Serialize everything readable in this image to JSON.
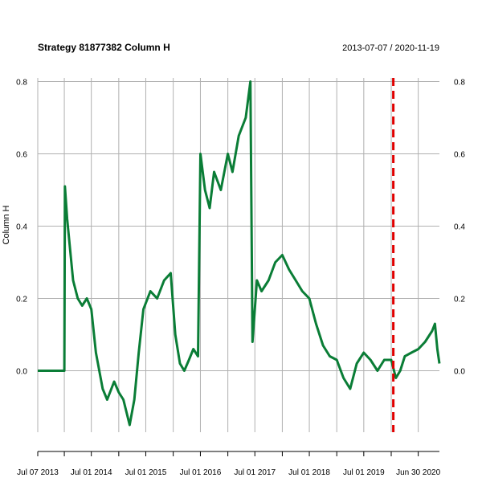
{
  "chart_data": {
    "type": "line",
    "title": "Strategy 81877382 Column H",
    "date_range": "2013-07-07 / 2020-11-19",
    "ylabel": "Column H",
    "xlabel": "",
    "ylim": [
      -0.17,
      0.81
    ],
    "y_ticks": [
      0.0,
      0.2,
      0.4,
      0.6,
      0.8
    ],
    "y_tick_labels": [
      "0.0",
      "0.2",
      "0.4",
      "0.6",
      "0.8"
    ],
    "x_range": [
      "2013-07-07",
      "2020-11-19"
    ],
    "x_tick_labels": [
      {
        "date": "2013-07-07",
        "label": "Jul 07 2013"
      },
      {
        "date": "2014-07-01",
        "label": "Jul 01 2014"
      },
      {
        "date": "2015-07-01",
        "label": "Jul 01 2015"
      },
      {
        "date": "2016-07-01",
        "label": "Jul 01 2016"
      },
      {
        "date": "2017-07-01",
        "label": "Jul 01 2017"
      },
      {
        "date": "2018-07-01",
        "label": "Jul 01 2018"
      },
      {
        "date": "2019-07-01",
        "label": "Jul 01 2019"
      },
      {
        "date": "2020-06-30",
        "label": "Jun 30 2020"
      }
    ],
    "x_minor_ticks": [
      "2014-01-01",
      "2015-01-01",
      "2016-01-01",
      "2017-01-01",
      "2018-01-01",
      "2019-01-01",
      "2020-01-01"
    ],
    "grid": true,
    "vline": {
      "date": "2020-01-15",
      "color": "#e00000",
      "style": "dashed"
    },
    "series": [
      {
        "color": "#0a7d36",
        "points": [
          [
            "2013-07-07",
            0.0
          ],
          [
            "2013-11-01",
            0.0
          ],
          [
            "2014-01-01",
            0.0
          ],
          [
            "2014-01-05",
            0.51
          ],
          [
            "2014-01-20",
            0.42
          ],
          [
            "2014-02-10",
            0.33
          ],
          [
            "2014-03-01",
            0.25
          ],
          [
            "2014-04-01",
            0.2
          ],
          [
            "2014-05-01",
            0.18
          ],
          [
            "2014-06-01",
            0.2
          ],
          [
            "2014-07-01",
            0.17
          ],
          [
            "2014-08-01",
            0.05
          ],
          [
            "2014-09-15",
            -0.05
          ],
          [
            "2014-10-15",
            -0.08
          ],
          [
            "2014-12-01",
            -0.03
          ],
          [
            "2015-01-01",
            -0.06
          ],
          [
            "2015-02-01",
            -0.08
          ],
          [
            "2015-03-15",
            -0.15
          ],
          [
            "2015-04-15",
            -0.08
          ],
          [
            "2015-05-15",
            0.05
          ],
          [
            "2015-06-15",
            0.17
          ],
          [
            "2015-08-01",
            0.22
          ],
          [
            "2015-09-15",
            0.2
          ],
          [
            "2015-11-01",
            0.25
          ],
          [
            "2015-12-15",
            0.27
          ],
          [
            "2016-01-15",
            0.1
          ],
          [
            "2016-02-15",
            0.02
          ],
          [
            "2016-03-15",
            0.0
          ],
          [
            "2016-04-15",
            0.03
          ],
          [
            "2016-05-15",
            0.06
          ],
          [
            "2016-06-15",
            0.04
          ],
          [
            "2016-07-01",
            0.6
          ],
          [
            "2016-08-01",
            0.5
          ],
          [
            "2016-09-01",
            0.45
          ],
          [
            "2016-10-01",
            0.55
          ],
          [
            "2016-11-15",
            0.5
          ],
          [
            "2017-01-01",
            0.6
          ],
          [
            "2017-02-01",
            0.55
          ],
          [
            "2017-03-15",
            0.65
          ],
          [
            "2017-05-01",
            0.7
          ],
          [
            "2017-06-01",
            0.8
          ],
          [
            "2017-06-15",
            0.08
          ],
          [
            "2017-07-15",
            0.25
          ],
          [
            "2017-08-15",
            0.22
          ],
          [
            "2017-10-01",
            0.25
          ],
          [
            "2017-11-15",
            0.3
          ],
          [
            "2018-01-01",
            0.32
          ],
          [
            "2018-02-15",
            0.28
          ],
          [
            "2018-04-01",
            0.25
          ],
          [
            "2018-05-15",
            0.22
          ],
          [
            "2018-07-01",
            0.2
          ],
          [
            "2018-08-15",
            0.13
          ],
          [
            "2018-10-01",
            0.07
          ],
          [
            "2018-11-15",
            0.04
          ],
          [
            "2019-01-01",
            0.03
          ],
          [
            "2019-02-15",
            -0.02
          ],
          [
            "2019-04-01",
            -0.05
          ],
          [
            "2019-05-15",
            0.02
          ],
          [
            "2019-07-01",
            0.05
          ],
          [
            "2019-08-15",
            0.03
          ],
          [
            "2019-10-01",
            0.0
          ],
          [
            "2019-11-15",
            0.03
          ],
          [
            "2020-01-01",
            0.03
          ],
          [
            "2020-02-01",
            -0.02
          ],
          [
            "2020-03-01",
            0.0
          ],
          [
            "2020-04-01",
            0.04
          ],
          [
            "2020-05-15",
            0.05
          ],
          [
            "2020-07-01",
            0.06
          ],
          [
            "2020-08-15",
            0.08
          ],
          [
            "2020-10-01",
            0.11
          ],
          [
            "2020-10-20",
            0.13
          ],
          [
            "2020-11-05",
            0.06
          ],
          [
            "2020-11-19",
            0.02
          ]
        ]
      }
    ]
  }
}
